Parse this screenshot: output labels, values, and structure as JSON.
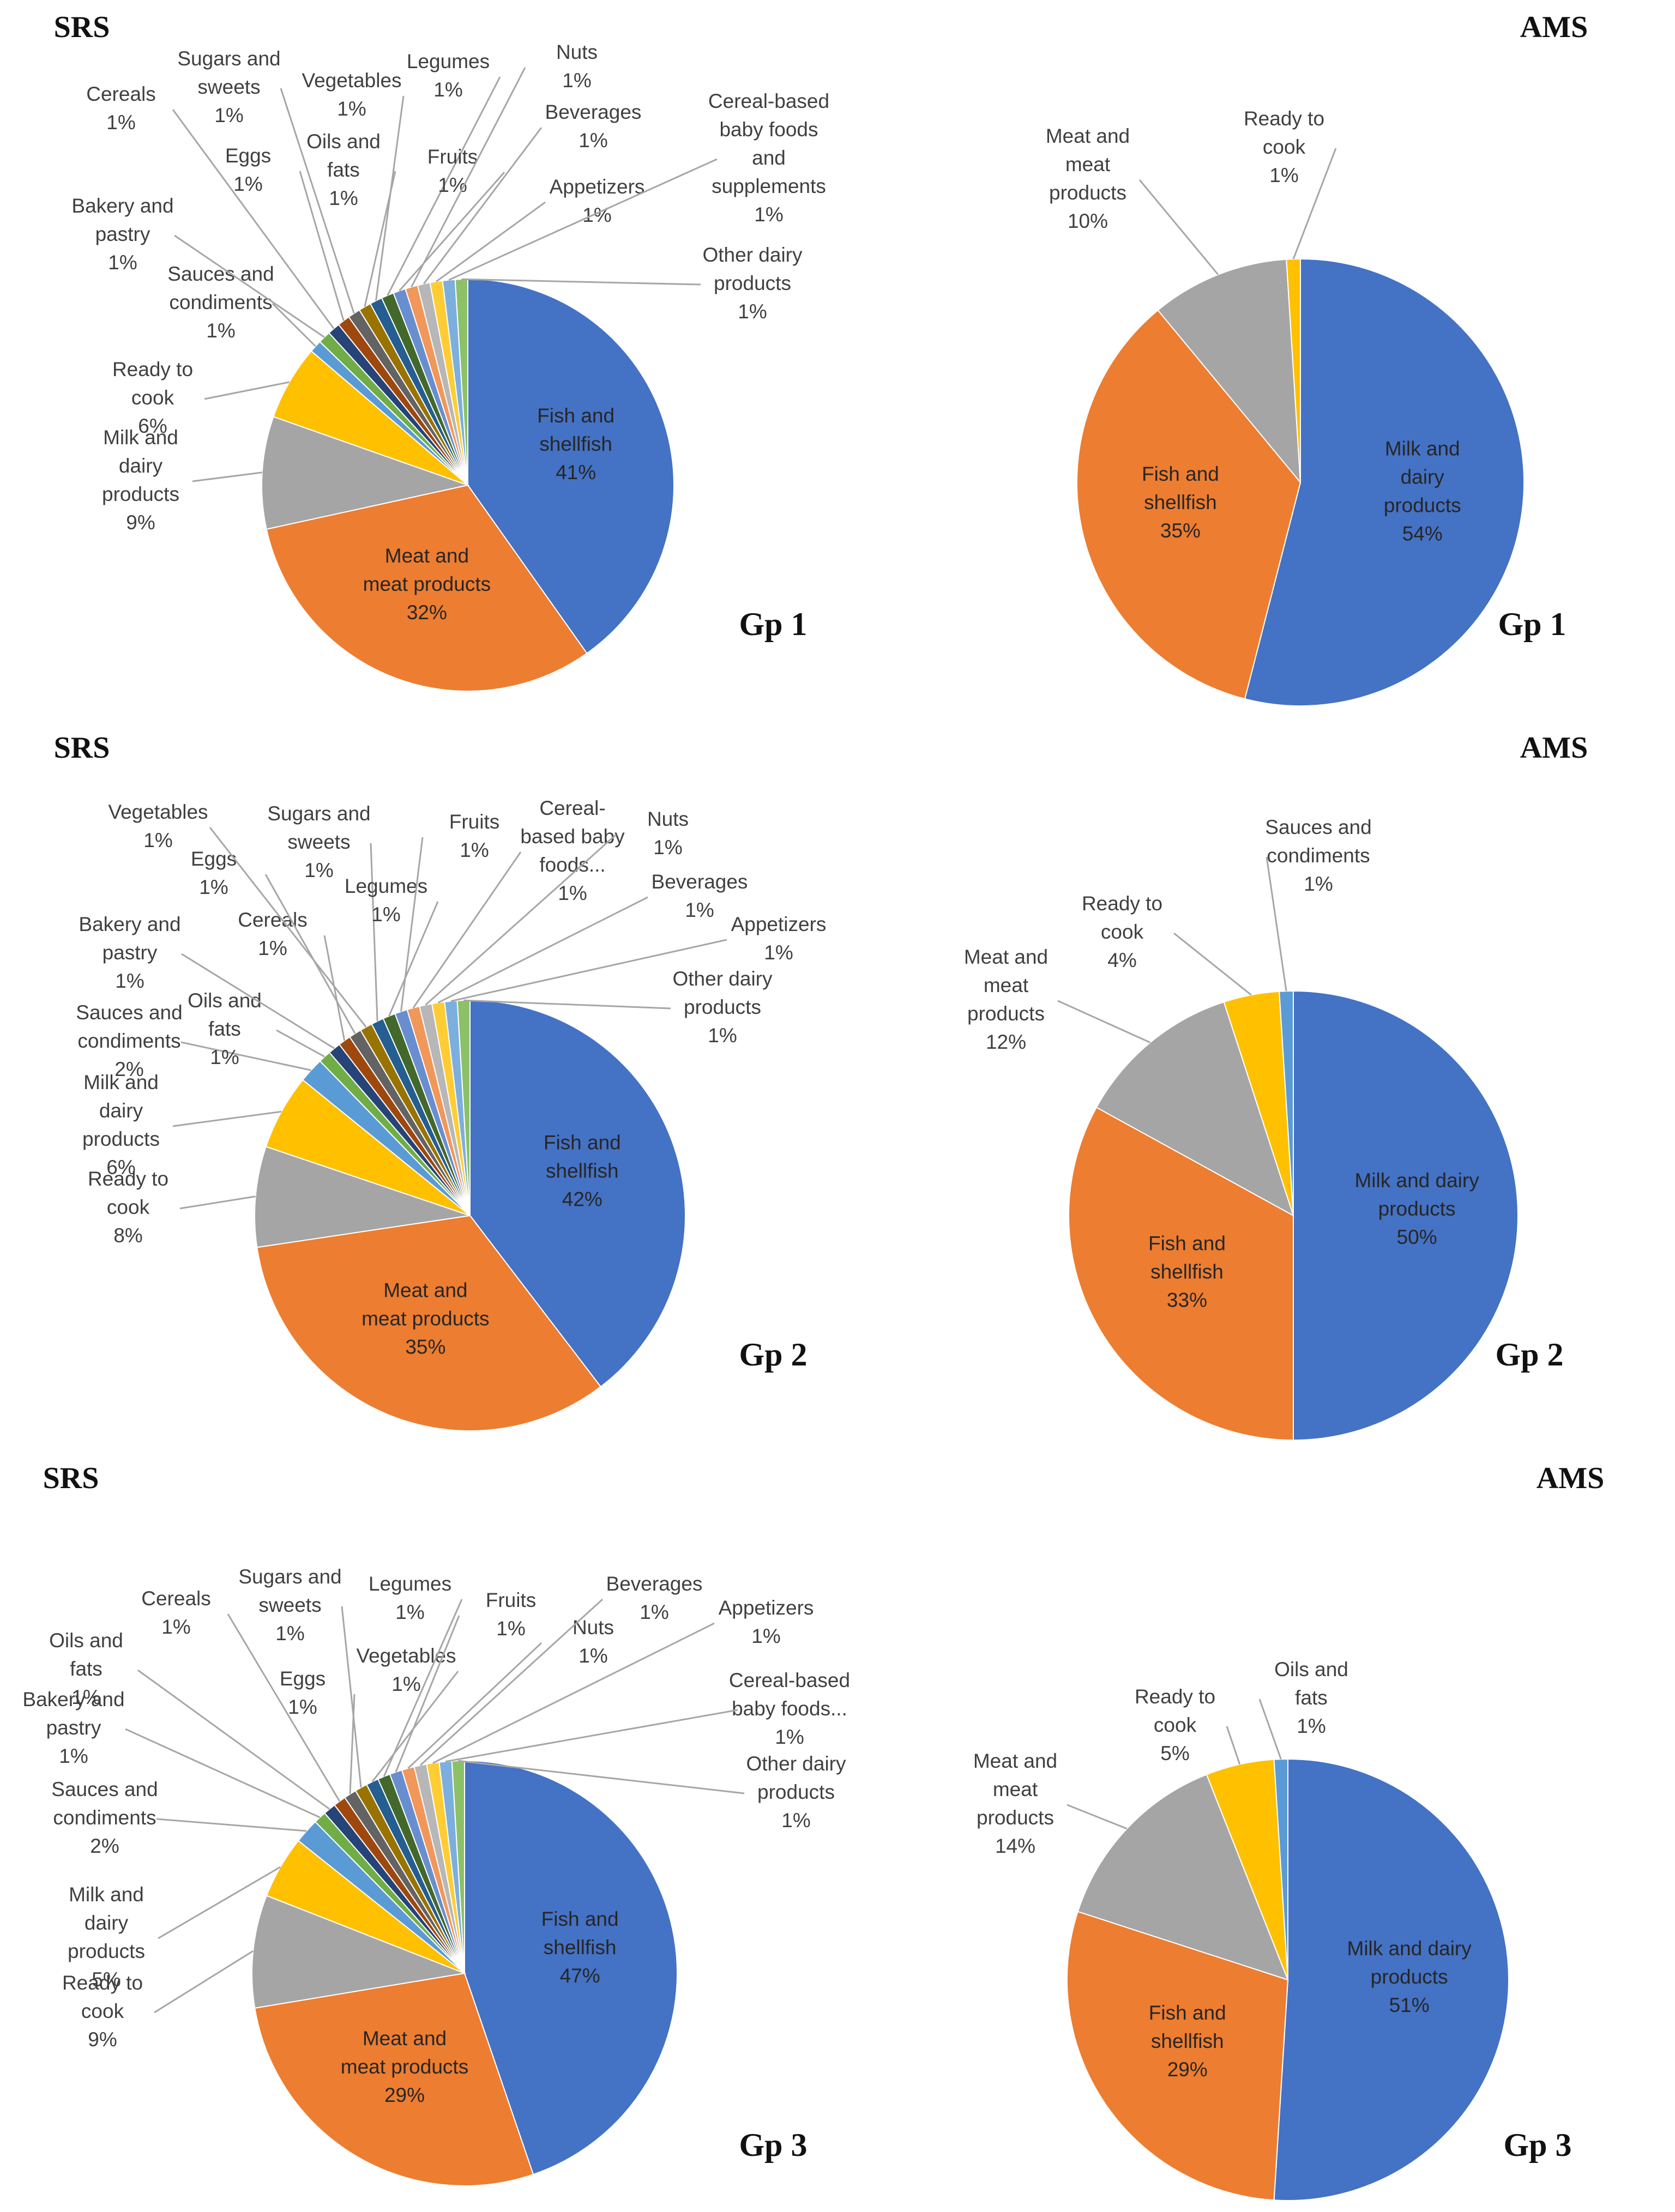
{
  "colors": {
    "blue": "#4472c4",
    "orange": "#ed7d31",
    "gray": "#a5a5a5",
    "gold": "#ffc000",
    "lightblue": "#5b9bd5",
    "green": "#70ad47",
    "navy": "#264478",
    "brown": "#9e480e",
    "darkgray": "#636363",
    "olive": "#997300",
    "steel": "#255e91",
    "darkgreen": "#43682b",
    "periwinkle": "#698ed0",
    "salmon": "#f1975a",
    "silver": "#b7b7b7",
    "yellow": "#ffcd33",
    "sky": "#7cafdd",
    "lime": "#8cc168"
  },
  "chart_data": [
    {
      "type": "pie",
      "title": "SRS",
      "group": "Gp 1",
      "unit": "%",
      "slices": [
        {
          "name": "Fish and shellfish",
          "value": 41,
          "label": "41%",
          "color": "blue"
        },
        {
          "name": "Meat and meat products",
          "value": 32,
          "label": "32%",
          "color": "orange"
        },
        {
          "name": "Milk and dairy products",
          "value": 9,
          "label": "9%",
          "color": "gray"
        },
        {
          "name": "Ready to cook",
          "value": 6,
          "label": "6%",
          "color": "gold"
        },
        {
          "name": "Sauces and condiments",
          "value": 1,
          "label": "1%",
          "color": "lightblue"
        },
        {
          "name": "Bakery and pastry",
          "value": 1,
          "label": "1%",
          "color": "green"
        },
        {
          "name": "Cereals",
          "value": 1,
          "label": "1%",
          "color": "navy"
        },
        {
          "name": "Eggs",
          "value": 1,
          "label": "1%",
          "color": "brown"
        },
        {
          "name": "Sugars and sweets",
          "value": 1,
          "label": "1%",
          "color": "darkgray"
        },
        {
          "name": "Oils and fats",
          "value": 1,
          "label": "1%",
          "color": "olive"
        },
        {
          "name": "Vegetables",
          "value": 1,
          "label": "1%",
          "color": "steel"
        },
        {
          "name": "Legumes",
          "value": 1,
          "label": "1%",
          "color": "darkgreen"
        },
        {
          "name": "Fruits",
          "value": 1,
          "label": "1%",
          "color": "periwinkle"
        },
        {
          "name": "Nuts",
          "value": 1,
          "label": "1%",
          "color": "salmon"
        },
        {
          "name": "Beverages",
          "value": 1,
          "label": "1%",
          "color": "silver"
        },
        {
          "name": "Appetizers",
          "value": 1,
          "label": "1%",
          "color": "yellow"
        },
        {
          "name": "Cereal-based baby foods and supplements",
          "value": 1,
          "label": "1%",
          "color": "sky"
        },
        {
          "name": "Other dairy products",
          "value": 1,
          "label": "1%",
          "color": "lime"
        }
      ]
    },
    {
      "type": "pie",
      "title": "AMS",
      "group": "Gp 1",
      "unit": "%",
      "slices": [
        {
          "name": "Milk and dairy products",
          "value": 54,
          "label": "54%",
          "color": "blue"
        },
        {
          "name": "Fish and shellfish",
          "value": 35,
          "label": "35%",
          "color": "orange"
        },
        {
          "name": "Meat and meat products",
          "value": 10,
          "label": "10%",
          "color": "gray"
        },
        {
          "name": "Ready to cook",
          "value": 1,
          "label": "1%",
          "color": "gold"
        }
      ]
    },
    {
      "type": "pie",
      "title": "SRS",
      "group": "Gp 2",
      "unit": "%",
      "slices": [
        {
          "name": "Fish and shellfish",
          "value": 42,
          "label": "42%",
          "color": "blue"
        },
        {
          "name": "Meat and meat products",
          "value": 35,
          "label": "35%",
          "color": "orange"
        },
        {
          "name": "Ready to cook",
          "value": 8,
          "label": "8%",
          "color": "gray"
        },
        {
          "name": "Milk and dairy products",
          "value": 6,
          "label": "6%",
          "color": "gold"
        },
        {
          "name": "Sauces and condiments",
          "value": 2,
          "label": "2%",
          "color": "lightblue"
        },
        {
          "name": "Oils and fats",
          "value": 1,
          "label": "1%",
          "color": "green"
        },
        {
          "name": "Bakery and pastry",
          "value": 1,
          "label": "1%",
          "color": "navy"
        },
        {
          "name": "Cereals",
          "value": 1,
          "label": "1%",
          "color": "brown"
        },
        {
          "name": "Eggs",
          "value": 1,
          "label": "1%",
          "color": "darkgray"
        },
        {
          "name": "Vegetables",
          "value": 1,
          "label": "1%",
          "color": "olive"
        },
        {
          "name": "Sugars and sweets",
          "value": 1,
          "label": "1%",
          "color": "steel"
        },
        {
          "name": "Legumes",
          "value": 1,
          "label": "1%",
          "color": "darkgreen"
        },
        {
          "name": "Fruits",
          "value": 1,
          "label": "1%",
          "color": "periwinkle"
        },
        {
          "name": "Cereal-based baby foods...",
          "value": 1,
          "label": "1%",
          "color": "salmon"
        },
        {
          "name": "Nuts",
          "value": 1,
          "label": "1%",
          "color": "silver"
        },
        {
          "name": "Beverages",
          "value": 1,
          "label": "1%",
          "color": "yellow"
        },
        {
          "name": "Appetizers",
          "value": 1,
          "label": "1%",
          "color": "sky"
        },
        {
          "name": "Other dairy products",
          "value": 1,
          "label": "1%",
          "color": "lime"
        }
      ]
    },
    {
      "type": "pie",
      "title": "AMS",
      "group": "Gp 2",
      "unit": "%",
      "slices": [
        {
          "name": "Milk and dairy products",
          "value": 50,
          "label": "50%",
          "color": "blue"
        },
        {
          "name": "Fish and shellfish",
          "value": 33,
          "label": "33%",
          "color": "orange"
        },
        {
          "name": "Meat and meat products",
          "value": 12,
          "label": "12%",
          "color": "gray"
        },
        {
          "name": "Ready to cook",
          "value": 4,
          "label": "4%",
          "color": "gold"
        },
        {
          "name": "Sauces and condiments",
          "value": 1,
          "label": "1%",
          "color": "lightblue"
        }
      ]
    },
    {
      "type": "pie",
      "title": "SRS",
      "group": "Gp 3",
      "unit": "%",
      "slices": [
        {
          "name": "Fish and shellfish",
          "value": 47,
          "label": "47%",
          "color": "blue"
        },
        {
          "name": "Meat and meat products",
          "value": 29,
          "label": "29%",
          "color": "orange"
        },
        {
          "name": "Ready to cook",
          "value": 9,
          "label": "9%",
          "color": "gray"
        },
        {
          "name": "Milk and dairy products",
          "value": 5,
          "label": "5%",
          "color": "gold"
        },
        {
          "name": "Sauces and condiments",
          "value": 2,
          "label": "2%",
          "color": "lightblue"
        },
        {
          "name": "Bakery and pastry",
          "value": 1,
          "label": "1%",
          "color": "green"
        },
        {
          "name": "Oils and fats",
          "value": 1,
          "label": "1%",
          "color": "navy"
        },
        {
          "name": "Cereals",
          "value": 1,
          "label": "1%",
          "color": "brown"
        },
        {
          "name": "Eggs",
          "value": 1,
          "label": "1%",
          "color": "darkgray"
        },
        {
          "name": "Sugars and sweets",
          "value": 1,
          "label": "1%",
          "color": "olive"
        },
        {
          "name": "Vegetables",
          "value": 1,
          "label": "1%",
          "color": "steel"
        },
        {
          "name": "Legumes",
          "value": 1,
          "label": "1%",
          "color": "darkgreen"
        },
        {
          "name": "Fruits",
          "value": 1,
          "label": "1%",
          "color": "periwinkle"
        },
        {
          "name": "Nuts",
          "value": 1,
          "label": "1%",
          "color": "salmon"
        },
        {
          "name": "Beverages",
          "value": 1,
          "label": "1%",
          "color": "silver"
        },
        {
          "name": "Appetizers",
          "value": 1,
          "label": "1%",
          "color": "yellow"
        },
        {
          "name": "Cereal-based baby foods...",
          "value": 1,
          "label": "1%",
          "color": "sky"
        },
        {
          "name": "Other dairy products",
          "value": 1,
          "label": "1%",
          "color": "lime"
        }
      ]
    },
    {
      "type": "pie",
      "title": "AMS",
      "group": "Gp 3",
      "unit": "%",
      "slices": [
        {
          "name": "Milk and dairy products",
          "value": 51,
          "label": "51%",
          "color": "blue"
        },
        {
          "name": "Fish and shellfish",
          "value": 29,
          "label": "29%",
          "color": "orange"
        },
        {
          "name": "Meat and meat products",
          "value": 14,
          "label": "14%",
          "color": "gray"
        },
        {
          "name": "Ready to cook",
          "value": 5,
          "label": "5%",
          "color": "gold"
        },
        {
          "name": "Oils and fats",
          "value": 1,
          "label": "1%",
          "color": "lightblue"
        }
      ]
    }
  ]
}
